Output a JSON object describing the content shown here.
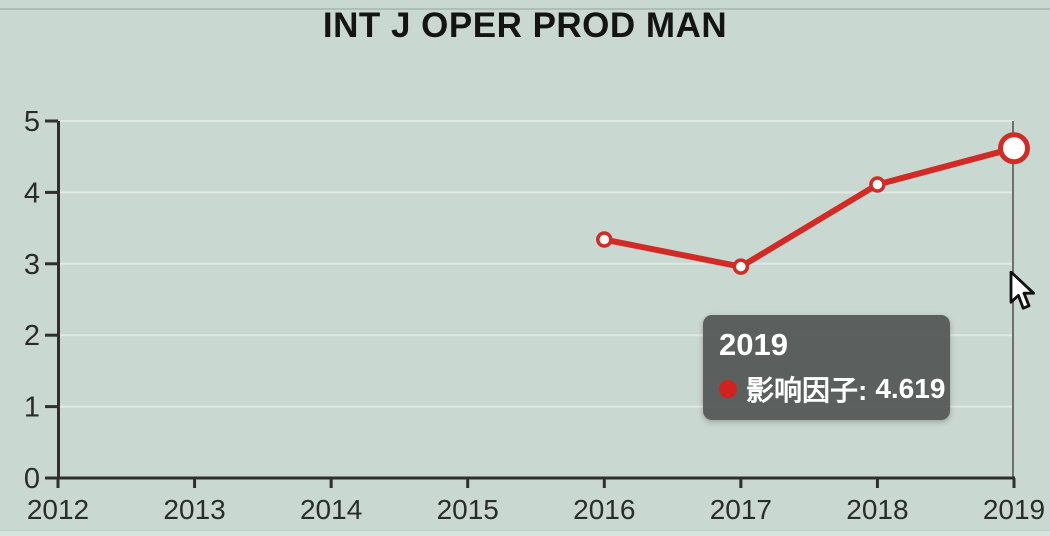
{
  "title": "INT J OPER PROD MAN",
  "colors": {
    "background": "#c9d8d1",
    "line": "#d22b26",
    "marker_fill": "#ffffff",
    "axis": "#2f2f2f",
    "tick_label": "#2b2b2b",
    "gridline": "rgba(255,255,255,0.45)",
    "crosshair": "#6f6f6f",
    "tooltip_bg": "#565b59",
    "tooltip_text": "#ffffff",
    "tooltip_dot": "#d32120"
  },
  "chart_data": {
    "type": "line",
    "title": "INT J OPER PROD MAN",
    "categories": [
      "2012",
      "2013",
      "2014",
      "2015",
      "2016",
      "2017",
      "2018",
      "2019"
    ],
    "series": [
      {
        "name": "影响因子",
        "values": [
          null,
          null,
          null,
          null,
          3.34,
          2.96,
          4.11,
          4.619
        ]
      }
    ],
    "xlabel": "",
    "ylabel": "",
    "ylim": [
      0,
      5
    ],
    "y_ticks": [
      0,
      1,
      2,
      3,
      4,
      5
    ],
    "grid": true,
    "legend_position": "none",
    "highlighted_point": {
      "category": "2019",
      "value": 4.619
    }
  },
  "tooltip": {
    "title": "2019",
    "label": "影响因子:",
    "value": "4.619"
  }
}
